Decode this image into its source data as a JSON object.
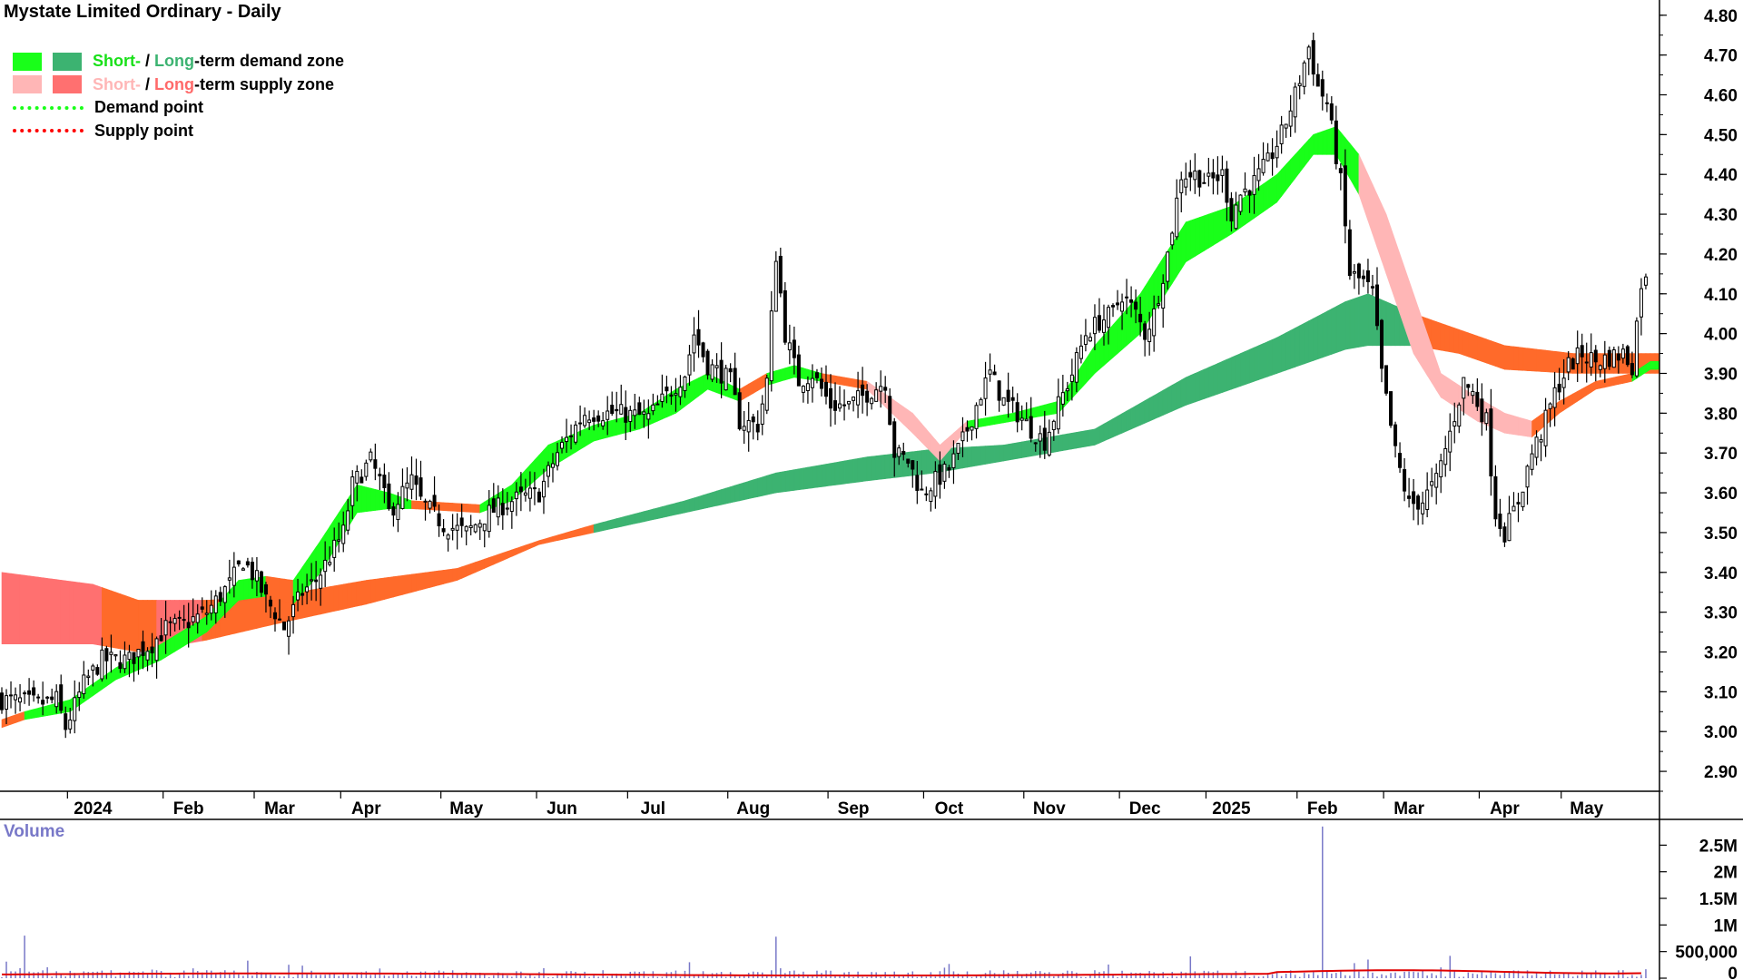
{
  "title": "Mystate Limited Ordinary - Daily",
  "legend": {
    "demand_short": "Short-",
    "demand_sep": " / ",
    "demand_long": "Long",
    "demand_rest": "-term demand zone",
    "supply_short": "Short-",
    "supply_sep": " / ",
    "supply_long": "Long",
    "supply_rest": "-term supply zone",
    "demand_point": "Demand point",
    "supply_point": "Supply point"
  },
  "volume_label": "Volume",
  "colors": {
    "short_demand": "#19ff19",
    "long_demand": "#3cb371",
    "short_supply": "#ffb6b6",
    "long_supply": "#ff7070",
    "long_supply_alt": "#ff6a2a",
    "demand_point": "#19ff19",
    "supply_point": "#ff0000",
    "volume_bar": "#7878c8",
    "volume_avg": "#e00000",
    "candle": "#000000"
  },
  "chart_data": {
    "type": "candlestick",
    "title": "Mystate Limited Ordinary - Daily",
    "price_axis": {
      "ticks": [
        "2.90",
        "3.00",
        "3.10",
        "3.20",
        "3.30",
        "3.40",
        "3.50",
        "3.60",
        "3.70",
        "3.80",
        "3.90",
        "4.00",
        "4.10",
        "4.20",
        "4.30",
        "4.40",
        "4.50",
        "4.60",
        "4.70",
        "4.80"
      ],
      "range": [
        2.85,
        4.82
      ],
      "position": "right"
    },
    "time_axis": {
      "labels": [
        "2024",
        "Feb",
        "Mar",
        "Apr",
        "May",
        "Jun",
        "Jul",
        "Aug",
        "Sep",
        "Oct",
        "Nov",
        "Dec",
        "2025",
        "Feb",
        "Mar",
        "Apr",
        "May"
      ],
      "bold_labels": [
        "2024",
        "2025"
      ]
    },
    "volume_axis": {
      "ticks": [
        "0",
        "500,000",
        "1M",
        "1.5M",
        "2M",
        "2.5M"
      ],
      "values": [
        0,
        500000,
        1000000,
        1500000,
        2000000,
        2500000
      ],
      "range": [
        0,
        2950000
      ]
    },
    "close_approx": [
      [
        0,
        3.08
      ],
      [
        8,
        3.07
      ],
      [
        12,
        3.08
      ],
      [
        14,
        3.01
      ],
      [
        18,
        3.12
      ],
      [
        22,
        3.18
      ],
      [
        28,
        3.18
      ],
      [
        30,
        3.2
      ],
      [
        33,
        3.22
      ],
      [
        36,
        3.26
      ],
      [
        40,
        3.27
      ],
      [
        45,
        3.3
      ],
      [
        50,
        3.37
      ],
      [
        53,
        3.43
      ],
      [
        56,
        3.38
      ],
      [
        58,
        3.33
      ],
      [
        60,
        3.3
      ],
      [
        62,
        3.26
      ],
      [
        66,
        3.35
      ],
      [
        69,
        3.38
      ],
      [
        75,
        3.5
      ],
      [
        77,
        3.62
      ],
      [
        81,
        3.68
      ],
      [
        83,
        3.63
      ],
      [
        85,
        3.55
      ],
      [
        88,
        3.6
      ],
      [
        90,
        3.63
      ],
      [
        92,
        3.58
      ],
      [
        97,
        3.52
      ],
      [
        102,
        3.5
      ],
      [
        107,
        3.55
      ],
      [
        112,
        3.58
      ],
      [
        118,
        3.6
      ],
      [
        122,
        3.7
      ],
      [
        128,
        3.8
      ],
      [
        135,
        3.8
      ],
      [
        142,
        3.79
      ],
      [
        145,
        3.83
      ],
      [
        150,
        3.9
      ],
      [
        152,
        4.0
      ],
      [
        155,
        3.92
      ],
      [
        158,
        3.9
      ],
      [
        160,
        3.88
      ],
      [
        162,
        3.78
      ],
      [
        166,
        3.77
      ],
      [
        168,
        3.88
      ],
      [
        170,
        4.2
      ],
      [
        172,
        4.0
      ],
      [
        175,
        3.88
      ],
      [
        178,
        3.9
      ],
      [
        182,
        3.82
      ],
      [
        186,
        3.82
      ],
      [
        190,
        3.85
      ],
      [
        194,
        3.88
      ],
      [
        196,
        3.7
      ],
      [
        199,
        3.68
      ],
      [
        202,
        3.6
      ],
      [
        205,
        3.63
      ],
      [
        208,
        3.66
      ],
      [
        211,
        3.73
      ],
      [
        215,
        3.85
      ],
      [
        217,
        3.9
      ],
      [
        220,
        3.83
      ],
      [
        223,
        3.8
      ],
      [
        226,
        3.76
      ],
      [
        229,
        3.73
      ],
      [
        232,
        3.82
      ],
      [
        235,
        3.9
      ],
      [
        238,
        4.0
      ],
      [
        241,
        4.03
      ],
      [
        244,
        4.05
      ],
      [
        246,
        4.1
      ],
      [
        249,
        4.05
      ],
      [
        251,
        4.0
      ],
      [
        253,
        4.05
      ],
      [
        256,
        4.2
      ],
      [
        259,
        4.4
      ],
      [
        262,
        4.4
      ],
      [
        265,
        4.38
      ],
      [
        268,
        4.4
      ],
      [
        270,
        4.3
      ],
      [
        272,
        4.35
      ],
      [
        275,
        4.38
      ],
      [
        278,
        4.43
      ],
      [
        281,
        4.5
      ],
      [
        284,
        4.6
      ],
      [
        287,
        4.72
      ],
      [
        289,
        4.62
      ],
      [
        291,
        4.58
      ],
      [
        294,
        4.38
      ],
      [
        296,
        4.15
      ],
      [
        299,
        4.13
      ],
      [
        301,
        4.1
      ],
      [
        303,
        3.9
      ],
      [
        306,
        3.7
      ],
      [
        309,
        3.57
      ],
      [
        312,
        3.58
      ],
      [
        315,
        3.63
      ],
      [
        318,
        3.75
      ],
      [
        321,
        3.88
      ],
      [
        323,
        3.85
      ],
      [
        326,
        3.78
      ],
      [
        328,
        3.55
      ],
      [
        330,
        3.5
      ],
      [
        333,
        3.58
      ],
      [
        336,
        3.7
      ],
      [
        338,
        3.75
      ],
      [
        341,
        3.85
      ],
      [
        344,
        3.92
      ],
      [
        347,
        3.95
      ],
      [
        350,
        3.93
      ],
      [
        353,
        3.94
      ],
      [
        356,
        3.95
      ],
      [
        358,
        3.92
      ],
      [
        360,
        4.13
      ]
    ],
    "short_term_zone_approx": [
      [
        0,
        3.01,
        3.03,
        "supply"
      ],
      [
        5,
        3.03,
        3.05,
        "demand"
      ],
      [
        15,
        3.05,
        3.08,
        "demand"
      ],
      [
        25,
        3.13,
        3.16,
        "demand"
      ],
      [
        35,
        3.18,
        3.22,
        "demand"
      ],
      [
        45,
        3.25,
        3.29,
        "demand"
      ],
      [
        52,
        3.33,
        3.38,
        "demand"
      ],
      [
        58,
        3.34,
        3.39,
        "supply"
      ],
      [
        64,
        3.32,
        3.38,
        "demand"
      ],
      [
        70,
        3.4,
        3.48,
        "demand"
      ],
      [
        78,
        3.55,
        3.62,
        "demand"
      ],
      [
        85,
        3.56,
        3.6,
        "demand"
      ],
      [
        90,
        3.56,
        3.58,
        "supply"
      ],
      [
        105,
        3.55,
        3.57,
        "demand"
      ],
      [
        112,
        3.58,
        3.62,
        "demand"
      ],
      [
        120,
        3.66,
        3.72,
        "demand"
      ],
      [
        130,
        3.73,
        3.77,
        "demand"
      ],
      [
        140,
        3.76,
        3.8,
        "demand"
      ],
      [
        148,
        3.8,
        3.86,
        "demand"
      ],
      [
        155,
        3.86,
        3.9,
        "demand"
      ],
      [
        162,
        3.83,
        3.86,
        "supply"
      ],
      [
        168,
        3.87,
        3.9,
        "demand"
      ],
      [
        174,
        3.89,
        3.92,
        "demand"
      ],
      [
        180,
        3.88,
        3.9,
        "supply"
      ],
      [
        190,
        3.86,
        3.88,
        "short_supply"
      ],
      [
        200,
        3.75,
        3.8,
        "short_supply"
      ],
      [
        206,
        3.68,
        3.72,
        "short_supply"
      ],
      [
        212,
        3.76,
        3.78,
        "demand"
      ],
      [
        222,
        3.78,
        3.8,
        "demand"
      ],
      [
        232,
        3.8,
        3.83,
        "demand"
      ],
      [
        240,
        3.9,
        3.97,
        "demand"
      ],
      [
        250,
        4.0,
        4.1,
        "demand"
      ],
      [
        260,
        4.18,
        4.28,
        "demand"
      ],
      [
        270,
        4.25,
        4.32,
        "demand"
      ],
      [
        280,
        4.33,
        4.4,
        "demand"
      ],
      [
        288,
        4.45,
        4.5,
        "demand"
      ],
      [
        293,
        4.45,
        4.52,
        "demand"
      ],
      [
        298,
        4.35,
        4.45,
        "short_supply"
      ],
      [
        304,
        4.15,
        4.3,
        "short_supply"
      ],
      [
        310,
        3.95,
        4.1,
        "short_supply"
      ],
      [
        316,
        3.84,
        3.9,
        "short_supply"
      ],
      [
        324,
        3.78,
        3.84,
        "short_supply"
      ],
      [
        330,
        3.75,
        3.8,
        "short_supply"
      ],
      [
        336,
        3.74,
        3.78,
        "supply"
      ],
      [
        342,
        3.8,
        3.83,
        "supply"
      ],
      [
        350,
        3.86,
        3.88,
        "supply"
      ],
      [
        358,
        3.88,
        3.9,
        "demand"
      ],
      [
        362,
        3.91,
        3.93,
        "demand"
      ]
    ],
    "long_term_zone_approx": [
      [
        0,
        3.22,
        3.4,
        "supply"
      ],
      [
        20,
        3.22,
        3.37,
        "supply"
      ],
      [
        30,
        3.2,
        3.33,
        "supply"
      ],
      [
        45,
        3.23,
        3.33,
        "supply"
      ],
      [
        60,
        3.27,
        3.34,
        "supply"
      ],
      [
        80,
        3.32,
        3.38,
        "supply"
      ],
      [
        100,
        3.38,
        3.41,
        "supply"
      ],
      [
        118,
        3.47,
        3.48,
        "supply"
      ],
      [
        130,
        3.5,
        3.52,
        "demand"
      ],
      [
        150,
        3.55,
        3.58,
        "demand"
      ],
      [
        170,
        3.6,
        3.65,
        "demand"
      ],
      [
        190,
        3.63,
        3.69,
        "demand"
      ],
      [
        205,
        3.65,
        3.71,
        "demand"
      ],
      [
        220,
        3.68,
        3.72,
        "demand"
      ],
      [
        240,
        3.72,
        3.76,
        "demand"
      ],
      [
        260,
        3.82,
        3.89,
        "demand"
      ],
      [
        280,
        3.9,
        3.99,
        "demand"
      ],
      [
        295,
        3.96,
        4.08,
        "demand"
      ],
      [
        300,
        3.97,
        4.1,
        "demand"
      ],
      [
        310,
        3.97,
        4.05,
        "supply"
      ],
      [
        320,
        3.95,
        4.01,
        "supply"
      ],
      [
        330,
        3.91,
        3.97,
        "supply"
      ],
      [
        345,
        3.9,
        3.95,
        "supply"
      ],
      [
        362,
        3.9,
        3.95,
        "supply"
      ]
    ],
    "volume_approx": {
      "average_level": 60000,
      "spikes": [
        [
          5,
          800000
        ],
        [
          54,
          330000
        ],
        [
          170,
          780000
        ],
        [
          151,
          300000
        ],
        [
          290,
          2850000
        ],
        [
          300,
          350000
        ],
        [
          318,
          420000
        ],
        [
          261,
          410000
        ]
      ]
    }
  }
}
